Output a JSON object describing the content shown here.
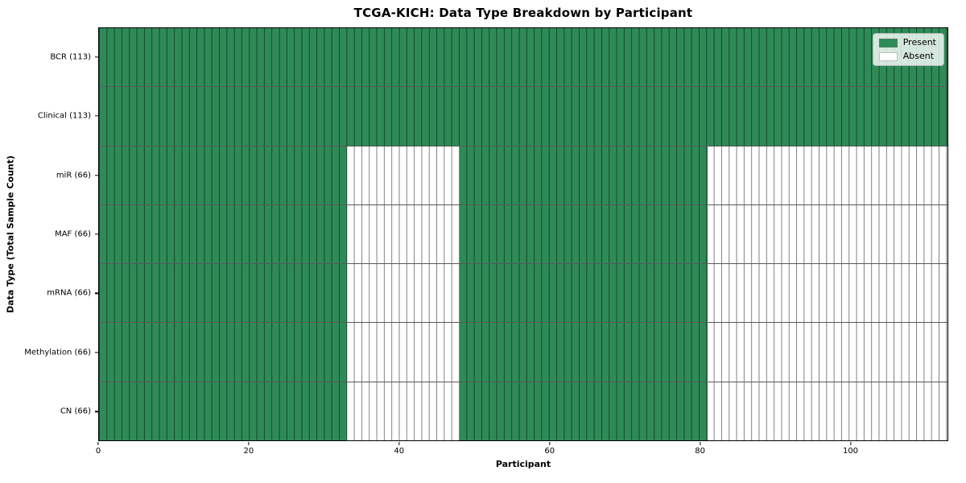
{
  "figure": {
    "background": "#ffffff"
  },
  "colors": {
    "present": "#2e8b57",
    "absent": "#ffffff",
    "grid_line": "#808080",
    "axis_border": "#000000"
  },
  "chart_data": {
    "type": "heatmap",
    "title": "TCGA-KICH: Data Type Breakdown by Participant",
    "xlabel": "Participant",
    "ylabel": "Data Type (Total Sample Count)",
    "n_participants": 113,
    "x_ticks": [
      0,
      20,
      40,
      60,
      80,
      100
    ],
    "x_range": [
      0,
      113
    ],
    "grid": true,
    "legend_position": "upper right",
    "legend": [
      {
        "label": "Present",
        "color": "#2e8b57"
      },
      {
        "label": "Absent",
        "color": "#ffffff"
      }
    ],
    "rows": [
      {
        "label": "BCR (113)",
        "total_samples": 113,
        "present_ranges": [
          [
            0,
            112
          ]
        ]
      },
      {
        "label": "Clinical (113)",
        "total_samples": 113,
        "present_ranges": [
          [
            0,
            112
          ]
        ]
      },
      {
        "label": "miR (66)",
        "total_samples": 66,
        "present_ranges": [
          [
            0,
            32
          ],
          [
            48,
            80
          ]
        ]
      },
      {
        "label": "MAF (66)",
        "total_samples": 66,
        "present_ranges": [
          [
            0,
            32
          ],
          [
            48,
            80
          ]
        ]
      },
      {
        "label": "mRNA (66)",
        "total_samples": 66,
        "present_ranges": [
          [
            0,
            32
          ],
          [
            48,
            80
          ]
        ]
      },
      {
        "label": "Methylation (66)",
        "total_samples": 66,
        "present_ranges": [
          [
            0,
            32
          ],
          [
            48,
            80
          ]
        ]
      },
      {
        "label": "CN (66)",
        "total_samples": 66,
        "present_ranges": [
          [
            0,
            32
          ],
          [
            48,
            80
          ]
        ]
      }
    ]
  }
}
